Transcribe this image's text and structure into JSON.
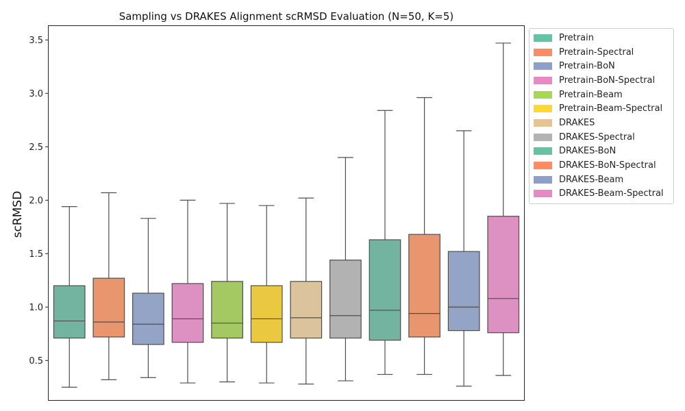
{
  "chart_data": {
    "type": "box",
    "title": "Sampling vs DRAKES Alignment scRMSD Evaluation (N=50, K=5)",
    "xlabel": "",
    "ylabel": "scRMSD",
    "ylim": [
      0.13,
      3.63
    ],
    "yticks": [
      "0.5",
      "1.0",
      "1.5",
      "2.0",
      "2.5",
      "3.0",
      "3.5"
    ],
    "legend_position": "outside-upper-right",
    "series": [
      {
        "name": "Pretrain",
        "color": "#66c2a5",
        "fill": "#72b49f",
        "whisker_low": 0.25,
        "q1": 0.71,
        "median": 0.87,
        "q3": 1.2,
        "whisker_high": 1.94
      },
      {
        "name": "Pretrain-Spectral",
        "color": "#fc8d62",
        "fill": "#e9956e",
        "whisker_low": 0.32,
        "q1": 0.72,
        "median": 0.86,
        "q3": 1.27,
        "whisker_high": 2.07
      },
      {
        "name": "Pretrain-BoN",
        "color": "#8da0cb",
        "fill": "#93a4c6",
        "whisker_low": 0.34,
        "q1": 0.65,
        "median": 0.84,
        "q3": 1.13,
        "whisker_high": 1.83
      },
      {
        "name": "Pretrain-BoN-Spectral",
        "color": "#e78ac3",
        "fill": "#dd91c2",
        "whisker_low": 0.29,
        "q1": 0.67,
        "median": 0.89,
        "q3": 1.22,
        "whisker_high": 2.0
      },
      {
        "name": "Pretrain-Beam",
        "color": "#a6d854",
        "fill": "#a5c962",
        "whisker_low": 0.3,
        "q1": 0.71,
        "median": 0.85,
        "q3": 1.24,
        "whisker_high": 1.97
      },
      {
        "name": "Pretrain-Beam-Spectral",
        "color": "#ffd92f",
        "fill": "#eac83f",
        "whisker_low": 0.29,
        "q1": 0.67,
        "median": 0.89,
        "q3": 1.2,
        "whisker_high": 1.95
      },
      {
        "name": "DRAKES",
        "color": "#e5c494",
        "fill": "#dbc39d",
        "whisker_low": 0.28,
        "q1": 0.71,
        "median": 0.9,
        "q3": 1.24,
        "whisker_high": 2.02
      },
      {
        "name": "DRAKES-Spectral",
        "color": "#b3b3b3",
        "fill": "#b2b2b2",
        "whisker_low": 0.31,
        "q1": 0.71,
        "median": 0.92,
        "q3": 1.44,
        "whisker_high": 2.4
      },
      {
        "name": "DRAKES-BoN",
        "color": "#66c2a5",
        "fill": "#72b49f",
        "whisker_low": 0.37,
        "q1": 0.69,
        "median": 0.97,
        "q3": 1.63,
        "whisker_high": 2.84
      },
      {
        "name": "DRAKES-BoN-Spectral",
        "color": "#fc8d62",
        "fill": "#e9956e",
        "whisker_low": 0.37,
        "q1": 0.72,
        "median": 0.94,
        "q3": 1.68,
        "whisker_high": 2.96
      },
      {
        "name": "DRAKES-Beam",
        "color": "#8da0cb",
        "fill": "#93a4c6",
        "whisker_low": 0.26,
        "q1": 0.78,
        "median": 1.0,
        "q3": 1.52,
        "whisker_high": 2.65
      },
      {
        "name": "DRAKES-Beam-Spectral",
        "color": "#e78ac3",
        "fill": "#dd91c2",
        "whisker_low": 0.36,
        "q1": 0.76,
        "median": 1.08,
        "q3": 1.85,
        "whisker_high": 3.47
      }
    ]
  }
}
